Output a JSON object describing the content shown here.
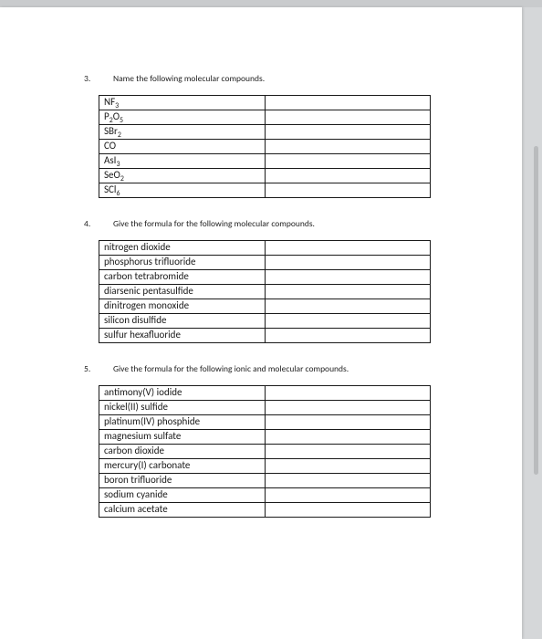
{
  "questions": [
    {
      "number": "3.",
      "prompt": "Name the following molecular compounds.",
      "rows": [
        {
          "left_html": "NF<sub>3</sub>",
          "right": ""
        },
        {
          "left_html": "P<sub>2</sub>O<sub>5</sub>",
          "right": ""
        },
        {
          "left_html": "SBr<sub>2</sub>",
          "right": ""
        },
        {
          "left_html": "CO",
          "right": ""
        },
        {
          "left_html": "AsI<sub>3</sub>",
          "right": ""
        },
        {
          "left_html": "SeO<sub>2</sub>",
          "right": ""
        },
        {
          "left_html": "SCl<sub>6</sub>",
          "right": ""
        }
      ]
    },
    {
      "number": "4.",
      "prompt": "Give the formula for the following molecular compounds.",
      "rows": [
        {
          "left_html": "nitrogen dioxide",
          "right": ""
        },
        {
          "left_html": "phosphorus trifluoride",
          "right": ""
        },
        {
          "left_html": "carbon tetrabromide",
          "right": ""
        },
        {
          "left_html": "diarsenic pentasulfide",
          "right": ""
        },
        {
          "left_html": "dinitrogen monoxide",
          "right": ""
        },
        {
          "left_html": "silicon disulfide",
          "right": ""
        },
        {
          "left_html": "sulfur hexafluoride",
          "right": ""
        }
      ]
    },
    {
      "number": "5.",
      "prompt": "Give the formula for the following ionic and molecular compounds.",
      "rows": [
        {
          "left_html": "antimony(V) iodide",
          "right": ""
        },
        {
          "left_html": "nickel(II) sulfide",
          "right": ""
        },
        {
          "left_html": "platinum(IV) phosphide",
          "right": ""
        },
        {
          "left_html": "magnesium sulfate",
          "right": ""
        },
        {
          "left_html": "carbon dioxide",
          "right": ""
        },
        {
          "left_html": "mercury(I) carbonate",
          "right": ""
        },
        {
          "left_html": "boron trifluoride",
          "right": ""
        },
        {
          "left_html": "sodium cyanide",
          "right": ""
        },
        {
          "left_html": "calcium acetate",
          "right": ""
        }
      ]
    }
  ]
}
